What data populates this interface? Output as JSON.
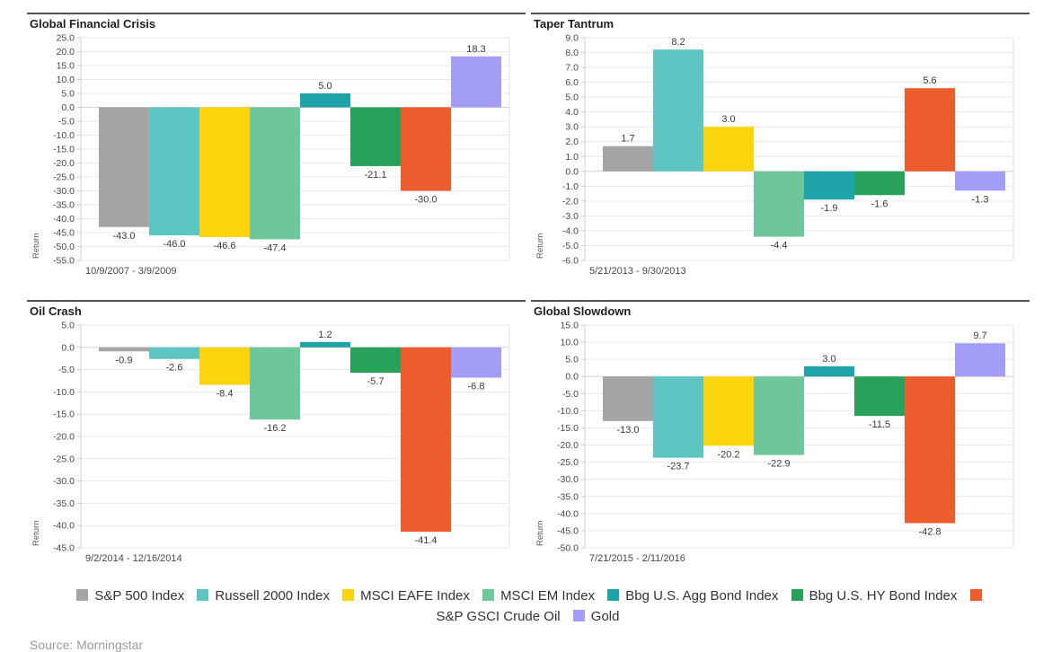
{
  "page": {
    "source_note": "Source: Morningstar"
  },
  "series": [
    {
      "name": "S&P 500 Index",
      "color": "#a5a5a5"
    },
    {
      "name": "Russell 2000 Index",
      "color": "#5dc6c2"
    },
    {
      "name": "MSCI EAFE Index",
      "color": "#fbd40d"
    },
    {
      "name": "MSCI EM Index",
      "color": "#6ec79b"
    },
    {
      "name": "Bbg U.S. Agg Bond Index",
      "color": "#1ea3a9"
    },
    {
      "name": "Bbg U.S. HY Bond Index",
      "color": "#28a15a"
    },
    {
      "name": "S&P GSCI Crude Oil",
      "color": "#ed5c2d"
    },
    {
      "name": "Gold",
      "color": "#a39df5"
    }
  ],
  "chart_data": [
    {
      "type": "bar",
      "title": "Global Financial Crisis",
      "date_range": "10/9/2007 - 3/9/2009",
      "ylabel": "Return",
      "categories": [
        "S&P 500 Index",
        "Russell 2000 Index",
        "MSCI EAFE Index",
        "MSCI EM Index",
        "Bbg U.S. Agg Bond Index",
        "Bbg U.S. HY Bond Index",
        "S&P GSCI Crude Oil",
        "Gold"
      ],
      "values": [
        -43.0,
        -46.0,
        -46.6,
        -47.4,
        5.0,
        -21.1,
        -30.0,
        18.3
      ],
      "ylim": [
        -55,
        25
      ],
      "ytick_step": 5,
      "grid": true,
      "legend_position": "bottom"
    },
    {
      "type": "bar",
      "title": "Taper Tantrum",
      "date_range": "5/21/2013 - 9/30/2013",
      "ylabel": "Return",
      "categories": [
        "S&P 500 Index",
        "Russell 2000 Index",
        "MSCI EAFE Index",
        "MSCI EM Index",
        "Bbg U.S. Agg Bond Index",
        "Bbg U.S. HY Bond Index",
        "S&P GSCI Crude Oil",
        "Gold"
      ],
      "values": [
        1.7,
        8.2,
        3.0,
        -4.4,
        -1.9,
        -1.6,
        5.6,
        -1.3
      ],
      "ylim": [
        -6,
        9
      ],
      "ytick_step": 1,
      "grid": true,
      "legend_position": "bottom"
    },
    {
      "type": "bar",
      "title": "Oil Crash",
      "date_range": "9/2/2014 - 12/16/2014",
      "ylabel": "Return",
      "categories": [
        "S&P 500 Index",
        "Russell 2000 Index",
        "MSCI EAFE Index",
        "MSCI EM Index",
        "Bbg U.S. Agg Bond Index",
        "Bbg U.S. HY Bond Index",
        "S&P GSCI Crude Oil",
        "Gold"
      ],
      "values": [
        -0.9,
        -2.6,
        -8.4,
        -16.2,
        1.2,
        -5.7,
        -41.4,
        -6.8
      ],
      "ylim": [
        -45,
        5
      ],
      "ytick_step": 5,
      "grid": true,
      "legend_position": "bottom"
    },
    {
      "type": "bar",
      "title": "Global Slowdown",
      "date_range": "7/21/2015 - 2/11/2016",
      "ylabel": "Return",
      "categories": [
        "S&P 500 Index",
        "Russell 2000 Index",
        "MSCI EAFE Index",
        "MSCI EM Index",
        "Bbg U.S. Agg Bond Index",
        "Bbg U.S. HY Bond Index",
        "S&P GSCI Crude Oil",
        "Gold"
      ],
      "values": [
        -13.0,
        -23.7,
        -20.2,
        -22.9,
        3.0,
        -11.5,
        -42.8,
        9.7
      ],
      "ylim": [
        -50,
        15
      ],
      "ytick_step": 5,
      "grid": true,
      "legend_position": "bottom"
    }
  ]
}
